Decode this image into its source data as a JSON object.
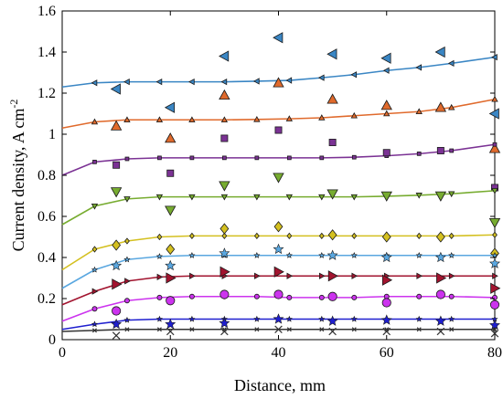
{
  "chart_data": {
    "type": "scatter",
    "title": "",
    "xlabel": "Distance, mm",
    "ylabel_main": "Current density, A cm",
    "ylabel_sup": "-2",
    "xlim": [
      0,
      80
    ],
    "ylim": [
      0,
      1.6
    ],
    "xticks": [
      0,
      20,
      40,
      60,
      80
    ],
    "yticks": [
      0,
      0.2,
      0.4,
      0.6,
      0.8,
      1.0,
      1.2,
      1.4,
      1.6
    ],
    "xtick_labels": [
      "0",
      "20",
      "40",
      "60",
      "80"
    ],
    "ytick_labels": [
      "0",
      "0.2",
      "0.4",
      "0.6",
      "0.8",
      "1",
      "1.2",
      "1.4",
      "1.6"
    ],
    "grid": false,
    "series": [
      {
        "color": "#3a86c4",
        "marker": "triangle-left",
        "fit_x": [
          0,
          6,
          12,
          18,
          24,
          30,
          36,
          42,
          48,
          54,
          60,
          66,
          72,
          80
        ],
        "fit_y": [
          1.23,
          1.25,
          1.255,
          1.255,
          1.255,
          1.255,
          1.258,
          1.262,
          1.275,
          1.29,
          1.31,
          1.325,
          1.345,
          1.375
        ],
        "x": [
          10,
          20,
          30,
          40,
          50,
          60,
          70,
          80
        ],
        "y": [
          1.22,
          1.13,
          1.38,
          1.47,
          1.39,
          1.37,
          1.4,
          1.1
        ]
      },
      {
        "color": "#e06a2c",
        "marker": "triangle-up",
        "fit_x": [
          0,
          6,
          12,
          18,
          24,
          30,
          36,
          42,
          48,
          54,
          60,
          66,
          72,
          80
        ],
        "fit_y": [
          1.03,
          1.06,
          1.07,
          1.07,
          1.07,
          1.07,
          1.072,
          1.075,
          1.08,
          1.09,
          1.1,
          1.11,
          1.13,
          1.17
        ],
        "x": [
          10,
          20,
          30,
          40,
          50,
          60,
          70,
          80
        ],
        "y": [
          1.04,
          0.98,
          1.19,
          1.25,
          1.17,
          1.14,
          1.13,
          0.93
        ]
      },
      {
        "color": "#7b3294",
        "marker": "square",
        "fit_x": [
          0,
          6,
          12,
          18,
          24,
          30,
          36,
          42,
          48,
          54,
          60,
          66,
          72,
          80
        ],
        "fit_y": [
          0.8,
          0.865,
          0.88,
          0.885,
          0.885,
          0.885,
          0.885,
          0.885,
          0.885,
          0.888,
          0.895,
          0.905,
          0.92,
          0.95
        ],
        "x": [
          10,
          20,
          30,
          40,
          50,
          60,
          70,
          80
        ],
        "y": [
          0.85,
          0.81,
          0.98,
          1.02,
          0.96,
          0.91,
          0.92,
          0.74
        ]
      },
      {
        "color": "#77ac30",
        "marker": "triangle-down",
        "fit_x": [
          0,
          6,
          12,
          18,
          24,
          30,
          36,
          42,
          48,
          54,
          60,
          66,
          72,
          80
        ],
        "fit_y": [
          0.56,
          0.65,
          0.685,
          0.695,
          0.695,
          0.695,
          0.695,
          0.695,
          0.695,
          0.695,
          0.698,
          0.703,
          0.71,
          0.725
        ],
        "x": [
          10,
          20,
          30,
          40,
          50,
          60,
          70,
          80
        ],
        "y": [
          0.72,
          0.63,
          0.75,
          0.79,
          0.71,
          0.7,
          0.7,
          0.57
        ]
      },
      {
        "color": "#d4c020",
        "marker": "diamond",
        "fit_x": [
          0,
          6,
          12,
          18,
          24,
          30,
          36,
          42,
          48,
          54,
          60,
          66,
          72,
          80
        ],
        "fit_y": [
          0.34,
          0.44,
          0.48,
          0.5,
          0.505,
          0.505,
          0.505,
          0.505,
          0.505,
          0.505,
          0.505,
          0.505,
          0.505,
          0.51
        ],
        "x": [
          10,
          20,
          30,
          40,
          50,
          60,
          70,
          80
        ],
        "y": [
          0.46,
          0.44,
          0.54,
          0.55,
          0.51,
          0.5,
          0.5,
          0.42
        ]
      },
      {
        "color": "#5aa7e0",
        "marker": "star",
        "fit_x": [
          0,
          6,
          12,
          18,
          24,
          30,
          36,
          42,
          48,
          54,
          60,
          66,
          72,
          80
        ],
        "fit_y": [
          0.25,
          0.34,
          0.39,
          0.405,
          0.41,
          0.41,
          0.41,
          0.41,
          0.41,
          0.41,
          0.41,
          0.41,
          0.41,
          0.41
        ],
        "x": [
          10,
          20,
          30,
          40,
          50,
          60,
          70,
          80
        ],
        "y": [
          0.36,
          0.36,
          0.42,
          0.44,
          0.41,
          0.4,
          0.4,
          0.37
        ]
      },
      {
        "color": "#a2142f",
        "marker": "triangle-right",
        "fit_x": [
          0,
          6,
          12,
          18,
          24,
          30,
          36,
          42,
          48,
          54,
          60,
          66,
          72,
          80
        ],
        "fit_y": [
          0.17,
          0.235,
          0.285,
          0.305,
          0.31,
          0.31,
          0.31,
          0.31,
          0.31,
          0.31,
          0.31,
          0.31,
          0.31,
          0.31
        ],
        "x": [
          10,
          20,
          30,
          40,
          50,
          60,
          70,
          80
        ],
        "y": [
          0.27,
          0.3,
          0.33,
          0.33,
          0.31,
          0.29,
          0.3,
          0.25
        ]
      },
      {
        "color": "#cc33ee",
        "marker": "circle",
        "fit_x": [
          0,
          6,
          12,
          18,
          24,
          30,
          36,
          42,
          48,
          54,
          60,
          66,
          72,
          80
        ],
        "fit_y": [
          0.09,
          0.15,
          0.19,
          0.205,
          0.21,
          0.21,
          0.21,
          0.205,
          0.205,
          0.205,
          0.21,
          0.21,
          0.21,
          0.205
        ],
        "x": [
          10,
          20,
          30,
          40,
          50,
          60,
          70,
          80
        ],
        "y": [
          0.14,
          0.19,
          0.22,
          0.22,
          0.21,
          0.18,
          0.22,
          0.17
        ]
      },
      {
        "color": "#1f1fcf",
        "marker": "star",
        "fit_x": [
          0,
          6,
          12,
          18,
          24,
          30,
          36,
          42,
          48,
          54,
          60,
          66,
          72,
          80
        ],
        "fit_y": [
          0.05,
          0.075,
          0.095,
          0.1,
          0.1,
          0.1,
          0.1,
          0.1,
          0.1,
          0.1,
          0.1,
          0.1,
          0.1,
          0.1
        ],
        "x": [
          10,
          20,
          30,
          40,
          50,
          60,
          70,
          80
        ],
        "y": [
          0.075,
          0.075,
          0.08,
          0.1,
          0.09,
          0.095,
          0.09,
          0.07
        ]
      },
      {
        "color": "#333333",
        "marker": "x",
        "fit_x": [
          0,
          6,
          12,
          18,
          24,
          30,
          36,
          42,
          48,
          54,
          60,
          66,
          72,
          80
        ],
        "fit_y": [
          0.04,
          0.045,
          0.05,
          0.05,
          0.05,
          0.05,
          0.05,
          0.05,
          0.05,
          0.05,
          0.05,
          0.05,
          0.05,
          0.05
        ],
        "x": [
          10,
          20,
          30,
          40,
          50,
          60,
          70,
          80
        ],
        "y": [
          0.02,
          0.04,
          0.04,
          0.05,
          0.04,
          0.04,
          0.04,
          0.03
        ]
      }
    ]
  }
}
